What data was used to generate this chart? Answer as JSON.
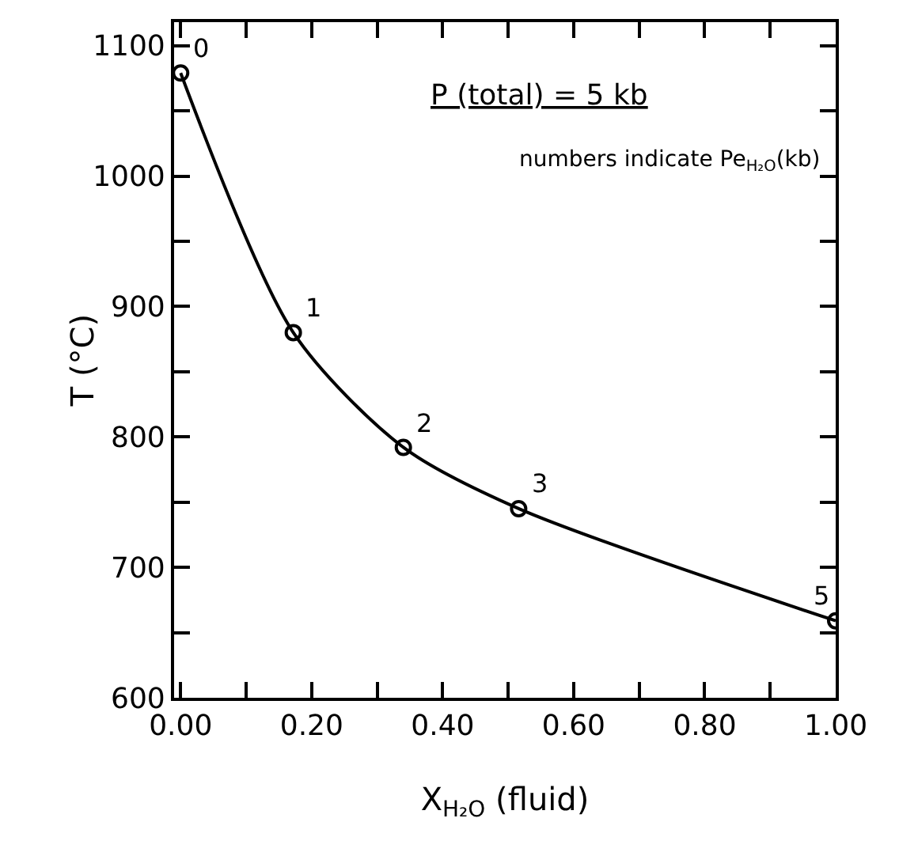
{
  "chart_data": {
    "type": "line",
    "xlabel": "X$_{H₂O}$ (fluid)",
    "ylabel": "T (°C)",
    "x": [
      0.0,
      0.172,
      0.34,
      0.516,
      1.0
    ],
    "series": [
      {
        "color": "#000000",
        "values": [
          1079,
          880,
          792,
          745,
          659
        ]
      }
    ],
    "marker": "circle",
    "line_style": "solid",
    "xlim": [
      -0.01,
      1.0
    ],
    "ylim": [
      600,
      1118
    ],
    "xticks": [
      {
        "value": 0,
        "label": "0.00"
      },
      {
        "value": 0.1,
        "label": null
      },
      {
        "value": 0.2,
        "label": "0.20"
      },
      {
        "value": 0.3,
        "label": null
      },
      {
        "value": 0.4,
        "label": "0.40"
      },
      {
        "value": 0.5,
        "label": null
      },
      {
        "value": 0.6,
        "label": "0.60"
      },
      {
        "value": 0.7,
        "label": null
      },
      {
        "value": 0.8,
        "label": "0.80"
      },
      {
        "value": 0.9,
        "label": null
      },
      {
        "value": 1.0,
        "label": "1.00"
      }
    ],
    "yticks": [
      600,
      {
        "value": 650,
        "label": null
      },
      700,
      {
        "value": 750,
        "label": null
      },
      800,
      {
        "value": 850,
        "label": null
      },
      900,
      {
        "value": 950,
        "label": null
      },
      1000,
      {
        "value": 1050,
        "label": null
      },
      1100
    ],
    "annotations": [
      {
        "text": "0",
        "x": 0.0,
        "y": 1079
      },
      {
        "text": "1",
        "x": 0.172,
        "y": 880
      },
      {
        "text": "2",
        "x": 0.34,
        "y": 792
      },
      {
        "text": "3",
        "x": 0.516,
        "y": 745
      },
      {
        "text": "5",
        "x": 1.0,
        "y": 659
      },
      "P (total) = 5 kb",
      "numbers indicate Pe$_{H₂O}$(kb)"
    ]
  }
}
